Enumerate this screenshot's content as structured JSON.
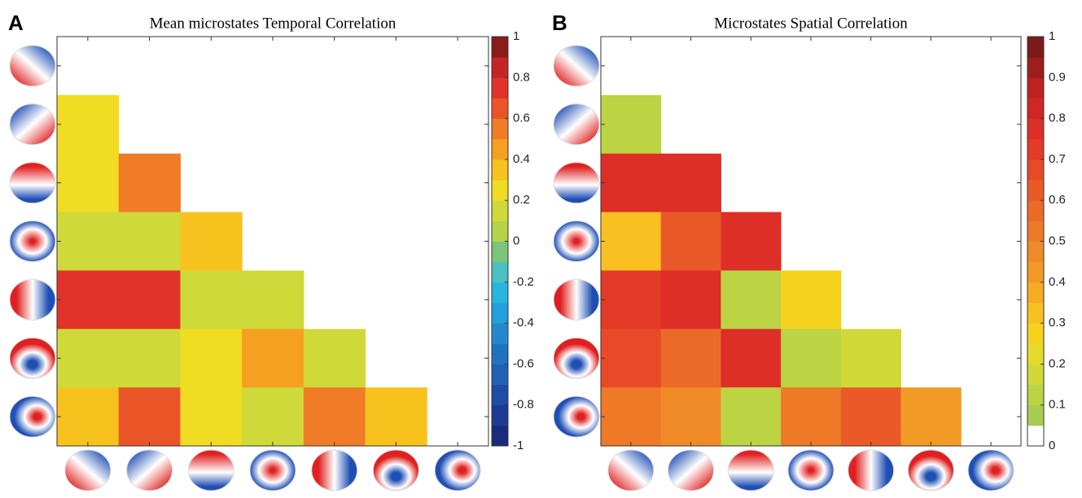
{
  "chart_data": [
    {
      "type": "heatmap",
      "panel_label": "A",
      "title": "Mean microstates Temporal Correlation",
      "values": [
        [
          null,
          null,
          null,
          null,
          null,
          null,
          null
        ],
        [
          0.25,
          null,
          null,
          null,
          null,
          null,
          null
        ],
        [
          0.25,
          0.5,
          null,
          null,
          null,
          null,
          null
        ],
        [
          0.15,
          0.18,
          0.35,
          null,
          null,
          null,
          null
        ],
        [
          0.7,
          0.7,
          0.15,
          0.15,
          null,
          null,
          null
        ],
        [
          0.15,
          0.15,
          0.25,
          0.45,
          0.15,
          null,
          null
        ],
        [
          0.35,
          0.65,
          0.25,
          0.15,
          0.5,
          0.35,
          null
        ]
      ],
      "clim": [
        -1,
        1
      ],
      "cticks": [
        -1,
        -0.8,
        -0.6,
        -0.4,
        -0.2,
        0,
        0.2,
        0.4,
        0.6,
        0.8,
        1
      ],
      "colormap": [
        "#1b2a7e",
        "#1d3b92",
        "#1f4ca4",
        "#2060b5",
        "#2272c2",
        "#2488cf",
        "#22a0dc",
        "#28b4e0",
        "#4ac0c0",
        "#7cc47a",
        "#b5d24a",
        "#cfd93a",
        "#f0dc22",
        "#f8c21e",
        "#f5a020",
        "#f07c28",
        "#ea5528",
        "#e2332a",
        "#c42626",
        "#8a1c1c"
      ]
    },
    {
      "type": "heatmap",
      "panel_label": "B",
      "title": "Microstates Spatial Correlation",
      "values": [
        [
          null,
          null,
          null,
          null,
          null,
          null,
          null
        ],
        [
          0.12,
          null,
          null,
          null,
          null,
          null,
          null
        ],
        [
          0.75,
          0.75,
          null,
          null,
          null,
          null,
          null
        ],
        [
          0.3,
          0.6,
          0.75,
          null,
          null,
          null,
          null
        ],
        [
          0.72,
          0.75,
          0.1,
          0.28,
          null,
          null,
          null
        ],
        [
          0.65,
          0.55,
          0.75,
          0.1,
          0.15,
          null,
          null
        ],
        [
          0.5,
          0.45,
          0.1,
          0.5,
          0.6,
          0.4,
          null
        ]
      ],
      "clim": [
        0,
        1
      ],
      "cticks": [
        0,
        0.1,
        0.2,
        0.3,
        0.4,
        0.5,
        0.6,
        0.7,
        0.8,
        0.9,
        1
      ],
      "colormap": [
        "#ffffff",
        "#a8cc50",
        "#bcd344",
        "#d0d838",
        "#e4da2c",
        "#f5d21e",
        "#f8c020",
        "#f6ac22",
        "#f39a26",
        "#f08a28",
        "#ee7a28",
        "#ec6a28",
        "#ea5a28",
        "#e84a28",
        "#e43a28",
        "#de2e28",
        "#d02626",
        "#bc2222",
        "#9e1e1e",
        "#7a1a1a"
      ]
    }
  ]
}
